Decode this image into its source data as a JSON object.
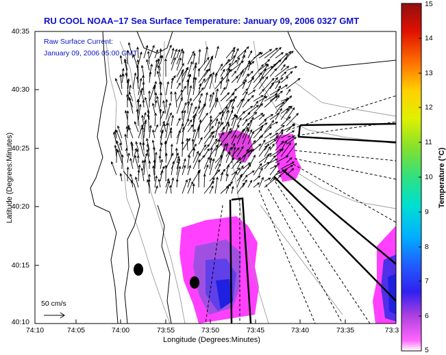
{
  "map": {
    "title": "RU COOL  NOAA−17  Sea Surface Temperature:  January 09, 2006 0327 GMT",
    "subtitle_line1": "Raw Surface Current:",
    "subtitle_line2": "January 09, 2006 05:00 GMT",
    "xlabel": "Longitude (Degrees:Minutes)",
    "ylabel": "Latitude (Degrees:Minutes)",
    "x_ticks": [
      "74:10",
      "74:05",
      "74:00",
      "73:55",
      "73:50",
      "73:45",
      "73:40",
      "73:35",
      "73:3"
    ],
    "y_ticks": [
      "40:35",
      "40:30",
      "40:25",
      "40:20",
      "40:15",
      "40:10"
    ],
    "scale_label": "50 cm/s"
  },
  "colorbar": {
    "label": "Temperature (°C)",
    "ticks": [
      "15",
      "14",
      "13",
      "12",
      "11",
      "10",
      "9",
      "8",
      "7",
      "6",
      "5"
    ],
    "range": [
      5,
      15
    ],
    "colors": [
      "#ff66ff",
      "#d030e0",
      "#8040e0",
      "#2020f0",
      "#3060ff",
      "#00c0ff",
      "#00e0c0",
      "#40e060",
      "#a0e020",
      "#f0f000",
      "#ffb000",
      "#ff5000",
      "#e00000",
      "#a00000"
    ]
  },
  "colors": {
    "title": "#1010c8",
    "sst_warm": "#ff40ff",
    "sst_cool": "#9040e0",
    "sst_cold": "#2020e0",
    "contours": "#999999",
    "coastline": "#000000"
  }
}
